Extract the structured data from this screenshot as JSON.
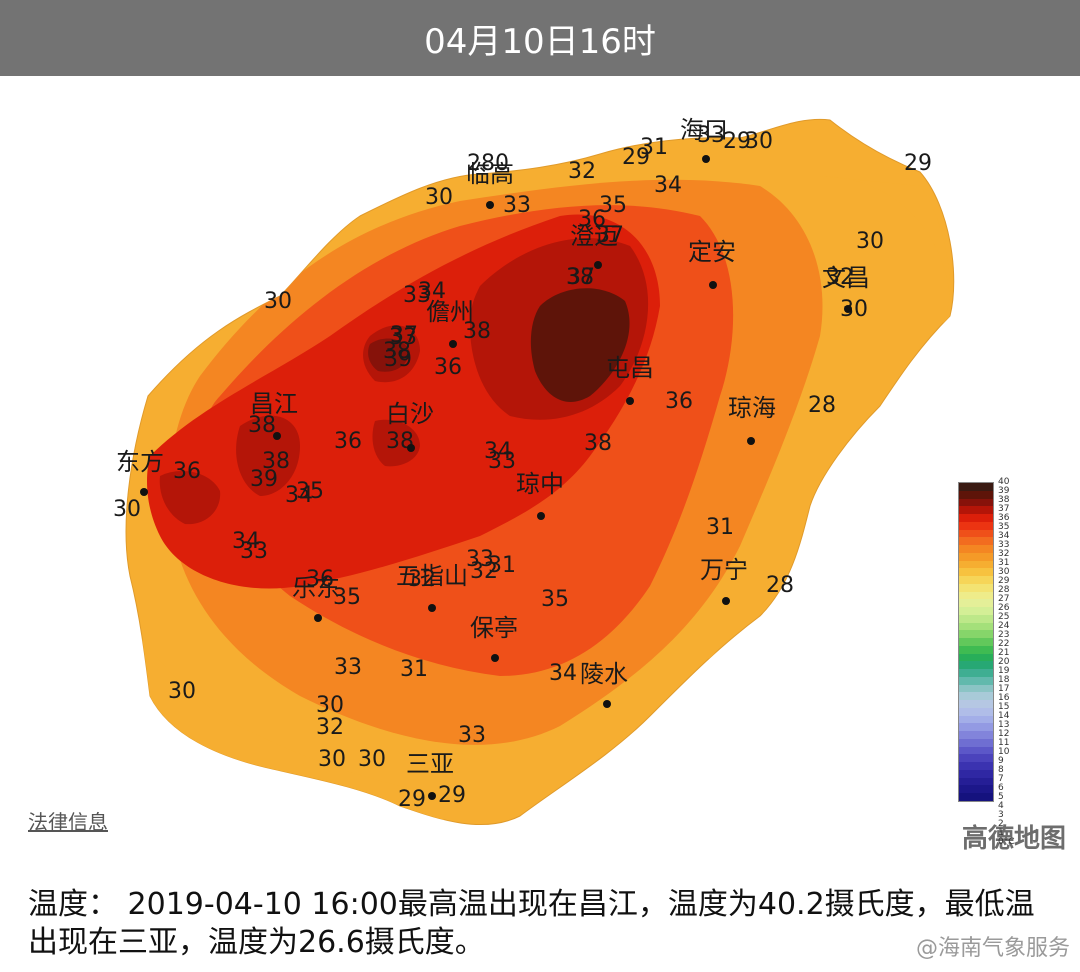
{
  "header": {
    "title": "04月10日16时"
  },
  "legal_link": "法律信息",
  "watermark": "高德地图",
  "weibo_handle": "@海南气象服务",
  "summary": "温度： 2019-04-10 16:00最高温出现在昌江，温度为40.2摄氏度，最低温出现在三亚，温度为26.6摄氏度。",
  "legend": {
    "unit": "0°C",
    "labels": [
      "40",
      "39",
      "38",
      "37",
      "36",
      "35",
      "34",
      "33",
      "32",
      "31",
      "30",
      "29",
      "28",
      "27",
      "26",
      "25",
      "24",
      "23",
      "22",
      "21",
      "20",
      "19",
      "18",
      "17",
      "16",
      "15",
      "14",
      "13",
      "12",
      "11",
      "10",
      "9",
      "8",
      "7",
      "6",
      "5",
      "4",
      "3",
      "2",
      "1",
      "0°C"
    ],
    "colors": [
      "#3a1a12",
      "#5e1409",
      "#86120a",
      "#b41508",
      "#dc1f0a",
      "#ec3412",
      "#ef5019",
      "#f26c1f",
      "#f48622",
      "#f59a27",
      "#f6ae31",
      "#f7c23f",
      "#f6d558",
      "#f3e372",
      "#eeec8a",
      "#e4ef98",
      "#d4ef96",
      "#bde889",
      "#a4e07a",
      "#86d56a",
      "#62c85b",
      "#3fbb52",
      "#28ae59",
      "#27a874",
      "#3fae92",
      "#62b9ad",
      "#8bc4c5",
      "#a8cad8",
      "#b5c7e3",
      "#b0bde8",
      "#a3aee8",
      "#939ae3",
      "#8284db",
      "#6f6ed2",
      "#5c57c8",
      "#4b43bc",
      "#3b33b0",
      "#2f27a3",
      "#251e96",
      "#1c178a",
      "#15127e"
    ]
  },
  "cities": [
    {
      "name": "海口"
    },
    {
      "name": "临高"
    },
    {
      "name": "澄迈"
    },
    {
      "name": "定安"
    },
    {
      "name": "文昌"
    },
    {
      "name": "儋州"
    },
    {
      "name": "屯昌"
    },
    {
      "name": "琼海"
    },
    {
      "name": "昌江"
    },
    {
      "name": "白沙"
    },
    {
      "name": "东方"
    },
    {
      "name": "琼中"
    },
    {
      "name": "万宁"
    },
    {
      "name": "五指山"
    },
    {
      "name": "乐东"
    },
    {
      "name": "保亭"
    },
    {
      "name": "陵水"
    },
    {
      "name": "三亚"
    }
  ],
  "temperatures": [
    "33",
    "29",
    "30",
    "31",
    "29",
    "280",
    "32",
    "34",
    "30",
    "35",
    "33",
    "36",
    "37",
    "38",
    "30",
    "29",
    "33",
    "30",
    "32",
    "34",
    "33",
    "38",
    "37",
    "38",
    "39",
    "36",
    "36",
    "38",
    "38",
    "36",
    "38",
    "38",
    "39",
    "35",
    "34",
    "34",
    "33",
    "36",
    "37",
    "30",
    "34",
    "33",
    "36",
    "32",
    "33",
    "32",
    "31",
    "35",
    "35",
    "31",
    "28",
    "33",
    "30",
    "31",
    "34",
    "30",
    "32",
    "30",
    "30",
    "29",
    "29",
    "33",
    "28",
    "30"
  ]
}
